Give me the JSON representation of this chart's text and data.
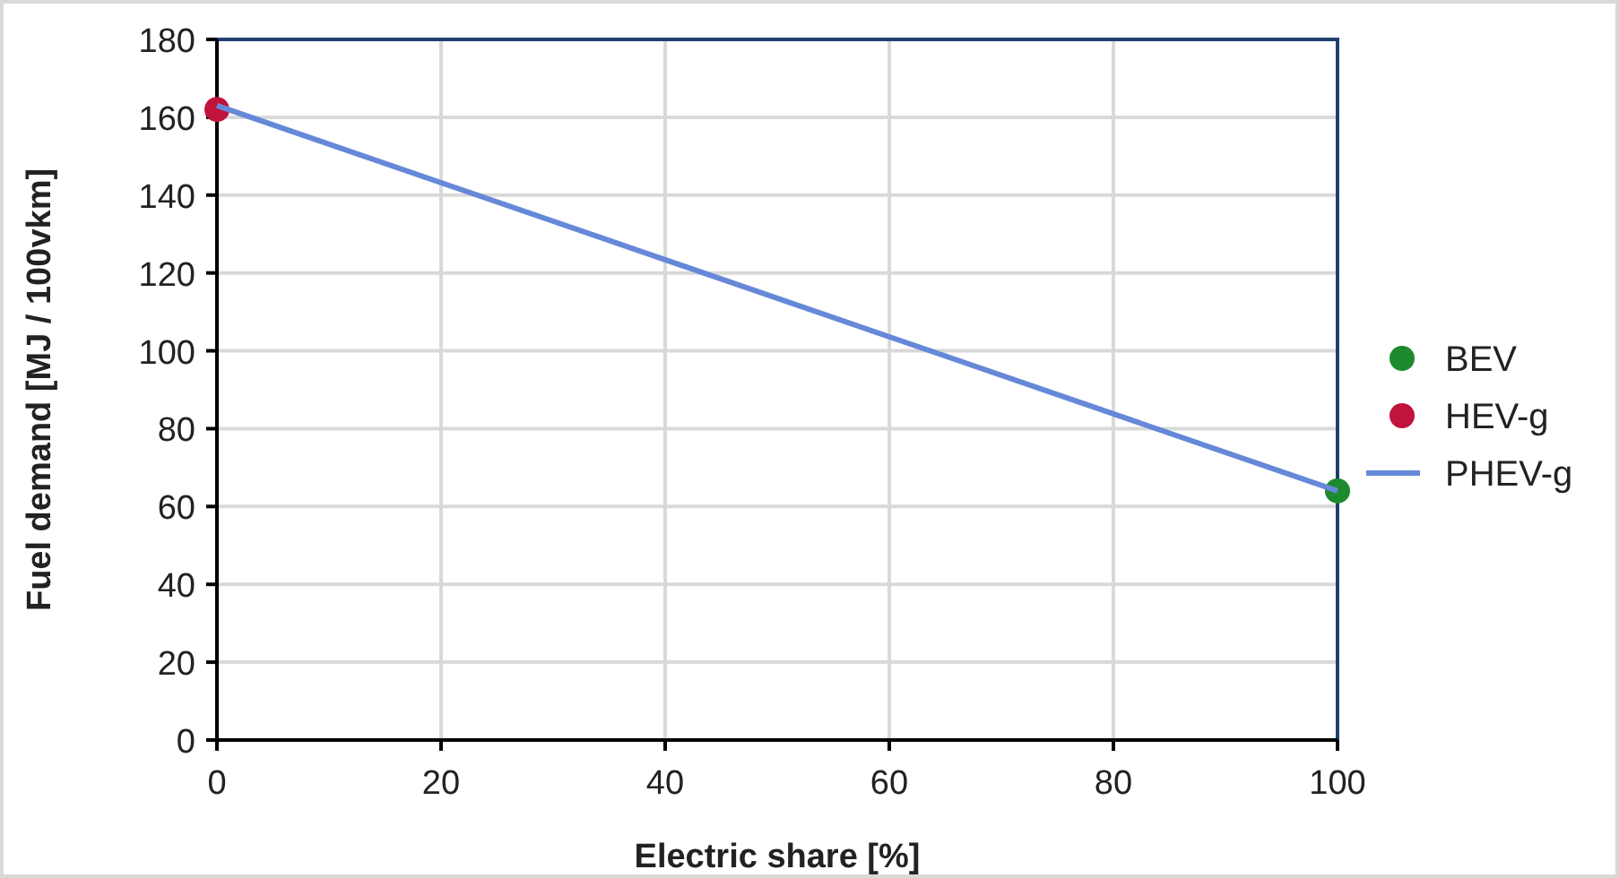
{
  "chart_data": {
    "type": "scatter",
    "xlabel": "Electric share [%]",
    "ylabel": "Fuel demand [MJ / 100vkm]",
    "xlim": [
      0,
      100
    ],
    "xticks": [
      0,
      20,
      40,
      60,
      80,
      100
    ],
    "ylim": [
      0,
      180
    ],
    "yticks": [
      0,
      20,
      40,
      60,
      80,
      100,
      120,
      140,
      160,
      180
    ],
    "x": [
      0,
      100
    ],
    "grid": true,
    "legend": "right",
    "marker": "circle",
    "series": [
      {
        "name": "BEV",
        "type": "scatter",
        "color": "#1e8a2e",
        "values": [
          null,
          64
        ]
      },
      {
        "name": "HEV-g",
        "type": "scatter",
        "color": "#c0143c",
        "values": [
          162,
          null
        ]
      },
      {
        "name": "PHEV-g",
        "type": "line",
        "marker": "none",
        "color": "#6688d8",
        "values": [
          163,
          64
        ]
      }
    ]
  }
}
